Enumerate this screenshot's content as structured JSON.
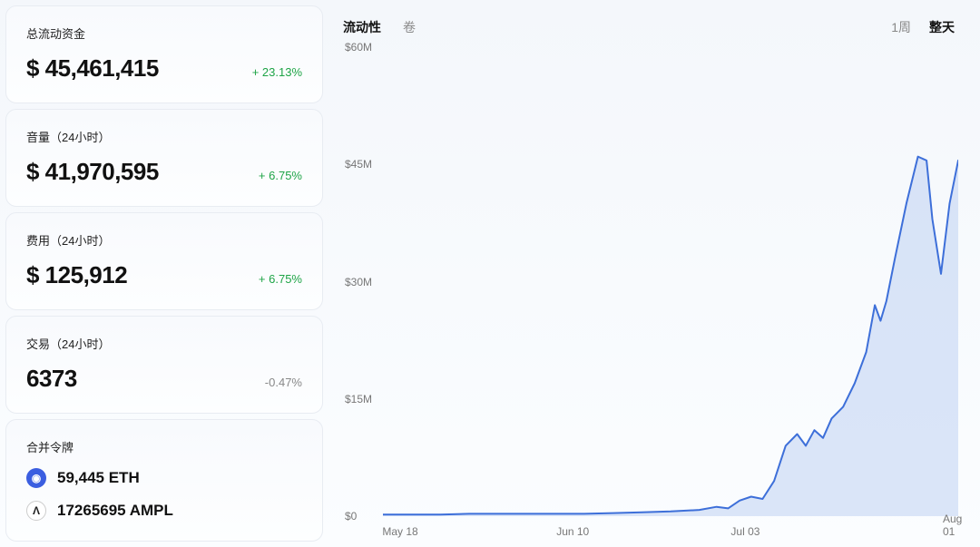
{
  "sidebar": {
    "cards": [
      {
        "label": "总流动资金",
        "value": "$ 45,461,415",
        "change": "+ 23.13%",
        "change_positive": true
      },
      {
        "label": "音量（24小时）",
        "value": "$ 41,970,595",
        "change": "+ 6.75%",
        "change_positive": true
      },
      {
        "label": "费用（24小时）",
        "value": "$ 125,912",
        "change": "+ 6.75%",
        "change_positive": true
      },
      {
        "label": "交易（24小时）",
        "value": "6373",
        "change": "-0.47%",
        "change_positive": false
      }
    ],
    "tokens_label": "合并令牌",
    "tokens": [
      {
        "icon_color": "#3b5ee0",
        "icon_text_color": "#ffffff",
        "symbol": "◉",
        "value": "59,445 ETH"
      },
      {
        "icon_color": "#ffffff",
        "icon_text_color": "#222222",
        "symbol": "Λ",
        "value": "17265695 AMPL"
      }
    ]
  },
  "chart": {
    "tabs": [
      {
        "label": "流动性",
        "active": true
      },
      {
        "label": "卷",
        "active": false
      }
    ],
    "ranges": [
      {
        "label": "1周",
        "active": false
      },
      {
        "label": "整天",
        "active": true
      }
    ],
    "type": "area",
    "y_axis": {
      "ticks": [
        {
          "label": "$60M",
          "value": 60
        },
        {
          "label": "$45M",
          "value": 45
        },
        {
          "label": "$30M",
          "value": 30
        },
        {
          "label": "$15M",
          "value": 15
        },
        {
          "label": "$0",
          "value": 0
        }
      ],
      "min": 0,
      "max": 60
    },
    "x_axis": {
      "ticks": [
        {
          "label": "May 18",
          "pos": 0.03
        },
        {
          "label": "Jun 10",
          "pos": 0.33
        },
        {
          "label": "Jul 03",
          "pos": 0.63
        },
        {
          "label": "Aug 01",
          "pos": 0.99
        }
      ]
    },
    "line_color": "#3d6fd9",
    "fill_color": "#bfd1f2",
    "fill_opacity": 0.55,
    "line_width": 2,
    "background": "#ffffff00",
    "data": [
      {
        "x": 0.0,
        "y": 0.2
      },
      {
        "x": 0.05,
        "y": 0.2
      },
      {
        "x": 0.1,
        "y": 0.2
      },
      {
        "x": 0.15,
        "y": 0.3
      },
      {
        "x": 0.2,
        "y": 0.3
      },
      {
        "x": 0.25,
        "y": 0.3
      },
      {
        "x": 0.3,
        "y": 0.3
      },
      {
        "x": 0.35,
        "y": 0.3
      },
      {
        "x": 0.4,
        "y": 0.4
      },
      {
        "x": 0.45,
        "y": 0.5
      },
      {
        "x": 0.5,
        "y": 0.6
      },
      {
        "x": 0.55,
        "y": 0.8
      },
      {
        "x": 0.58,
        "y": 1.2
      },
      {
        "x": 0.6,
        "y": 1.0
      },
      {
        "x": 0.62,
        "y": 2.0
      },
      {
        "x": 0.64,
        "y": 2.5
      },
      {
        "x": 0.66,
        "y": 2.2
      },
      {
        "x": 0.68,
        "y": 4.5
      },
      {
        "x": 0.7,
        "y": 9.0
      },
      {
        "x": 0.72,
        "y": 10.5
      },
      {
        "x": 0.735,
        "y": 9.0
      },
      {
        "x": 0.75,
        "y": 11.0
      },
      {
        "x": 0.765,
        "y": 10.0
      },
      {
        "x": 0.78,
        "y": 12.5
      },
      {
        "x": 0.8,
        "y": 14.0
      },
      {
        "x": 0.82,
        "y": 17.0
      },
      {
        "x": 0.84,
        "y": 21.0
      },
      {
        "x": 0.855,
        "y": 27.0
      },
      {
        "x": 0.865,
        "y": 25.0
      },
      {
        "x": 0.875,
        "y": 27.5
      },
      {
        "x": 0.89,
        "y": 33.0
      },
      {
        "x": 0.91,
        "y": 40.0
      },
      {
        "x": 0.93,
        "y": 46.0
      },
      {
        "x": 0.945,
        "y": 45.5
      },
      {
        "x": 0.955,
        "y": 38.0
      },
      {
        "x": 0.97,
        "y": 31.0
      },
      {
        "x": 0.985,
        "y": 40.0
      },
      {
        "x": 1.0,
        "y": 45.5
      }
    ]
  },
  "colors": {
    "card_bg_top": "#f8fafd",
    "card_bg_bottom": "#fdfeff",
    "card_border": "#e8ecf2",
    "text": "#111111",
    "text_muted": "#777777",
    "positive": "#1ea446",
    "negative": "#888888"
  }
}
